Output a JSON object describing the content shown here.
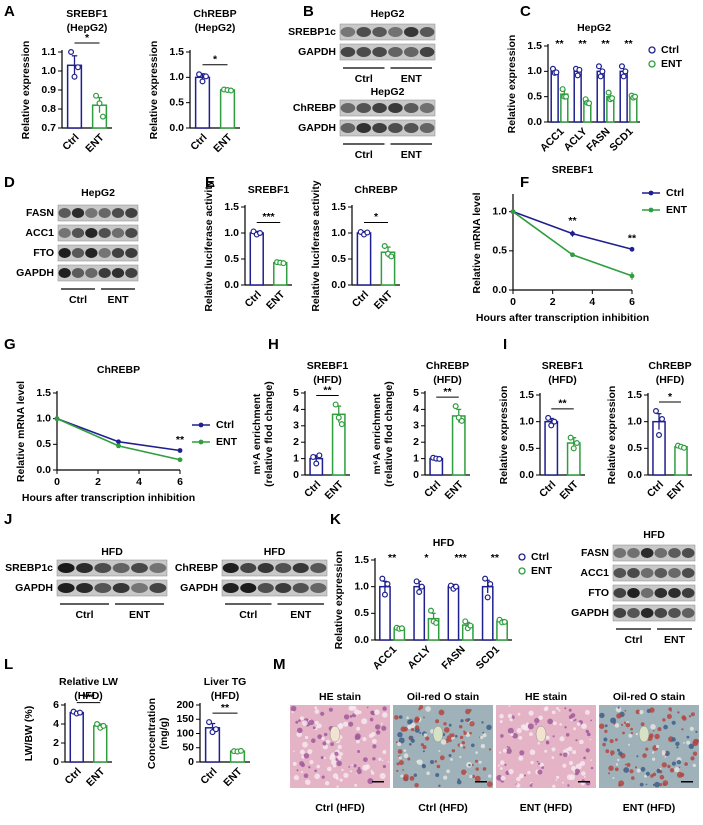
{
  "panel_letters": [
    "A",
    "B",
    "C",
    "D",
    "E",
    "F",
    "G",
    "H",
    "I",
    "J",
    "K",
    "L",
    "M"
  ],
  "chart_data": [
    {
      "type": "bar",
      "title": "SREBF1",
      "subtitle": "(HepG2)",
      "y_label": "Relative expression",
      "categories": [
        "Ctrl",
        "ENT"
      ],
      "colors": [
        "#1f1f8f",
        "#2e9e3e"
      ],
      "values": [
        1.03,
        0.82
      ],
      "errors": [
        0.05,
        0.04
      ],
      "points": [
        [
          1.1,
          0.97,
          1.02
        ],
        [
          0.87,
          0.83,
          0.76
        ]
      ],
      "ylim": [
        0.7,
        1.1
      ],
      "yticks": [
        0.7,
        0.8,
        0.9,
        {
          "value": 1,
          "label": "1.0"
        },
        1.1
      ],
      "significance": "*"
    },
    {
      "type": "bar",
      "title": "ChREBP",
      "subtitle": "(HepG2)",
      "y_label": "Relative expression",
      "categories": [
        "Ctrl",
        "ENT"
      ],
      "colors": [
        "#1f1f8f",
        "#2e9e3e"
      ],
      "values": [
        1.0,
        0.75
      ],
      "errors": [
        0.07,
        0.01
      ],
      "points": [
        [
          1.06,
          0.92,
          1.02
        ],
        [
          0.76,
          0.75,
          0.74
        ]
      ],
      "ylim": [
        0,
        1.5
      ],
      "yticks": [
        {
          "value": 0,
          "label": "0.0"
        },
        0.5,
        {
          "value": 1,
          "label": "1.0"
        },
        1.5
      ],
      "significance": "*"
    },
    {
      "type": "bar",
      "title": "HepG2",
      "y_label": "Relative expression",
      "categories": [
        "ACC1",
        "ACLY",
        "FASN",
        "SCD1"
      ],
      "series": [
        {
          "name": "Ctrl",
          "color": "#1f1f8f",
          "values": [
            1.0,
            1.0,
            1.0,
            1.0
          ],
          "errors": [
            0.05,
            0.07,
            0.1,
            0.1
          ],
          "points": [
            [
              1.05,
              0.97,
              0.98
            ],
            [
              1.05,
              0.92,
              1.03
            ],
            [
              1.1,
              0.9,
              1.0
            ],
            [
              1.1,
              0.9,
              1.0
            ]
          ]
        },
        {
          "name": "ENT",
          "color": "#2e9e3e",
          "values": [
            0.55,
            0.4,
            0.5,
            0.5
          ],
          "errors": [
            0.08,
            0.04,
            0.06,
            0.04
          ],
          "points": [
            [
              0.65,
              0.5,
              0.5
            ],
            [
              0.45,
              0.38,
              0.37
            ],
            [
              0.58,
              0.45,
              0.47
            ],
            [
              0.52,
              0.48,
              0.5
            ]
          ]
        }
      ],
      "ylim": [
        0,
        1.5
      ],
      "yticks": [
        {
          "value": 0,
          "label": "0.0"
        },
        0.5,
        {
          "value": 1,
          "label": "1.0"
        },
        1.5
      ],
      "significance": [
        "**",
        "**",
        "**",
        "**"
      ],
      "legend": "upper right"
    },
    {
      "type": "bar",
      "title": "SREBF1",
      "y_label": "Relative luciferase activity",
      "categories": [
        "Ctrl",
        "ENT"
      ],
      "colors": [
        "#1f1f8f",
        "#2e9e3e"
      ],
      "values": [
        1.0,
        0.43
      ],
      "errors": [
        0.03,
        0.01
      ],
      "points": [
        [
          1.03,
          0.97,
          1.0
        ],
        [
          0.44,
          0.43,
          0.42
        ]
      ],
      "ylim": [
        0,
        1.5
      ],
      "yticks": [
        {
          "value": 0,
          "label": "0.0"
        },
        0.5,
        {
          "value": 1,
          "label": "1.0"
        },
        1.5
      ],
      "significance": "***"
    },
    {
      "type": "bar",
      "title": "ChREBP",
      "y_label": "Relative luciferase activity",
      "categories": [
        "Ctrl",
        "ENT"
      ],
      "colors": [
        "#1f1f8f",
        "#2e9e3e"
      ],
      "values": [
        1.0,
        0.63
      ],
      "errors": [
        0.03,
        0.1
      ],
      "points": [
        [
          1.02,
          0.97,
          1.01
        ],
        [
          0.75,
          0.6,
          0.55
        ]
      ],
      "ylim": [
        0,
        1.5
      ],
      "yticks": [
        {
          "value": 0,
          "label": "0.0"
        },
        0.5,
        {
          "value": 1,
          "label": "1.0"
        },
        1.5
      ],
      "significance": "*"
    },
    {
      "type": "line",
      "title": "SREBF1",
      "x_label": "Hours after transcription inhibition",
      "y_label": "Relative mRNA level",
      "x": [
        0,
        3,
        6
      ],
      "series": [
        {
          "name": "Ctrl",
          "color": "#1f1f8f",
          "values": [
            1.0,
            0.72,
            0.52
          ],
          "errors": [
            0.02,
            0.04,
            0.02
          ]
        },
        {
          "name": "ENT",
          "color": "#2e9e3e",
          "values": [
            1.0,
            0.45,
            0.18
          ],
          "errors": [
            0.02,
            0.02,
            0.05
          ]
        }
      ],
      "xlim": [
        0,
        6
      ],
      "xticks": [
        0,
        2,
        4,
        6
      ],
      "ylim": [
        0,
        1.2
      ],
      "yticks": [
        {
          "value": 0,
          "label": "0.0"
        },
        0.5,
        {
          "value": 1,
          "label": "1.0"
        }
      ],
      "annotations": [
        {
          "x": 3,
          "text": "**"
        },
        {
          "x": 6,
          "text": "**"
        }
      ],
      "legend": "right"
    },
    {
      "type": "line",
      "title": "ChREBP",
      "x_label": "Hours after transcription inhibition",
      "y_label": "Relative mRNA level",
      "x": [
        0,
        3,
        6
      ],
      "series": [
        {
          "name": "Ctrl",
          "color": "#1f1f8f",
          "values": [
            1.0,
            0.55,
            0.38
          ],
          "errors": [
            0.02,
            0.02,
            0.02
          ]
        },
        {
          "name": "ENT",
          "color": "#2e9e3e",
          "values": [
            1.0,
            0.47,
            0.2
          ],
          "errors": [
            0.02,
            0.02,
            0.02
          ]
        }
      ],
      "xlim": [
        0,
        6
      ],
      "xticks": [
        0,
        2,
        4,
        6
      ],
      "ylim": [
        0,
        1.5
      ],
      "yticks": [
        {
          "value": 0,
          "label": "0.0"
        },
        0.5,
        {
          "value": 1,
          "label": "1.0"
        },
        1.5
      ],
      "annotations": [
        {
          "x": 6,
          "text": "**"
        }
      ],
      "legend": "right"
    },
    {
      "type": "bar",
      "title": "SREBF1",
      "subtitle": "(HFD)",
      "y_label": [
        "m⁶A enrichment",
        "(relative flod change)"
      ],
      "categories": [
        "Ctrl",
        "ENT"
      ],
      "colors": [
        "#1f1f8f",
        "#2e9e3e"
      ],
      "values": [
        1.0,
        3.7
      ],
      "errors": [
        0.2,
        0.5
      ],
      "points": [
        [
          1.1,
          0.7,
          1.2
        ],
        [
          4.3,
          3.5,
          3.1
        ]
      ],
      "ylim": [
        0,
        5
      ],
      "yticks": [
        0,
        1,
        2,
        3,
        4,
        5
      ],
      "significance": "**"
    },
    {
      "type": "bar",
      "title": "ChREBP",
      "subtitle": "(HFD)",
      "y_label": [
        "m⁶A enrichment",
        "(relative flod change)"
      ],
      "categories": [
        "Ctrl",
        "ENT"
      ],
      "colors": [
        "#1f1f8f",
        "#2e9e3e"
      ],
      "values": [
        1.0,
        3.6
      ],
      "errors": [
        0.05,
        0.4
      ],
      "points": [
        [
          1.05,
          1.0,
          0.98
        ],
        [
          4.2,
          3.5,
          3.3
        ]
      ],
      "ylim": [
        0,
        5
      ],
      "yticks": [
        0,
        1,
        2,
        3,
        4,
        5
      ],
      "significance": "**"
    },
    {
      "type": "bar",
      "title": "SREBF1",
      "subtitle": "(HFD)",
      "y_label": "Relative expression",
      "categories": [
        "Ctrl",
        "ENT"
      ],
      "colors": [
        "#1f1f8f",
        "#2e9e3e"
      ],
      "values": [
        1.0,
        0.6
      ],
      "errors": [
        0.06,
        0.1
      ],
      "points": [
        [
          1.07,
          0.93,
          1.0
        ],
        [
          0.7,
          0.5,
          0.6
        ]
      ],
      "ylim": [
        0,
        1.5
      ],
      "yticks": [
        {
          "value": 0,
          "label": "0.0"
        },
        0.5,
        {
          "value": 1,
          "label": "1.0"
        },
        1.5
      ],
      "significance": "**"
    },
    {
      "type": "bar",
      "title": "ChREBP",
      "subtitle": "(HFD)",
      "y_label": "Relative expression",
      "categories": [
        "Ctrl",
        "ENT"
      ],
      "colors": [
        "#1f1f8f",
        "#2e9e3e"
      ],
      "values": [
        1.0,
        0.53
      ],
      "errors": [
        0.15,
        0.02
      ],
      "points": [
        [
          1.2,
          0.75,
          1.05
        ],
        [
          0.55,
          0.53,
          0.51
        ]
      ],
      "ylim": [
        0,
        1.5
      ],
      "yticks": [
        {
          "value": 0,
          "label": "0.0"
        },
        0.5,
        {
          "value": 1,
          "label": "1.0"
        },
        1.5
      ],
      "significance": "*"
    },
    {
      "type": "bar",
      "title": "HFD",
      "y_label": "Relative expression",
      "categories": [
        "ACC1",
        "ACLY",
        "FASN",
        "SCD1"
      ],
      "series": [
        {
          "name": "Ctrl",
          "color": "#1f1f8f",
          "values": [
            1.0,
            1.0,
            1.0,
            1.0
          ],
          "errors": [
            0.1,
            0.1,
            0.04,
            0.12
          ],
          "points": [
            [
              1.15,
              0.85,
              1.05
            ],
            [
              1.1,
              0.9,
              1.0
            ],
            [
              1.02,
              0.96,
              1.0
            ],
            [
              1.15,
              0.8,
              1.05
            ]
          ]
        },
        {
          "name": "ENT",
          "color": "#2e9e3e",
          "values": [
            0.22,
            0.4,
            0.28,
            0.35
          ],
          "errors": [
            0.02,
            0.1,
            0.05,
            0.03
          ],
          "points": [
            [
              0.23,
              0.21,
              0.22
            ],
            [
              0.55,
              0.35,
              0.32
            ],
            [
              0.35,
              0.22,
              0.27
            ],
            [
              0.38,
              0.33,
              0.34
            ]
          ]
        }
      ],
      "ylim": [
        0,
        1.5
      ],
      "yticks": [
        {
          "value": 0,
          "label": "0.0"
        },
        0.5,
        {
          "value": 1,
          "label": "1.0"
        },
        1.5
      ],
      "significance": [
        "**",
        "*",
        "***",
        "**"
      ],
      "legend": "upper right"
    },
    {
      "type": "bar",
      "title": "Relative LW",
      "subtitle": "(HFD)",
      "y_label": "LW/BW (%)",
      "categories": [
        "Ctrl",
        "ENT"
      ],
      "colors": [
        "#1f1f8f",
        "#2e9e3e"
      ],
      "values": [
        5.2,
        3.8
      ],
      "errors": [
        0.1,
        0.2
      ],
      "points": [
        [
          5.3,
          5.1,
          5.2
        ],
        [
          4.0,
          3.6,
          3.8
        ]
      ],
      "ylim": [
        0,
        6
      ],
      "yticks": [
        0,
        2,
        4,
        6
      ],
      "significance": "***"
    },
    {
      "type": "bar",
      "title": "Liver TG",
      "subtitle": "(HFD)",
      "y_label": [
        "Concentration",
        "(mg/g)"
      ],
      "categories": [
        "Ctrl",
        "ENT"
      ],
      "colors": [
        "#1f1f8f",
        "#2e9e3e"
      ],
      "values": [
        120,
        38
      ],
      "errors": [
        15,
        1
      ],
      "points": [
        [
          140,
          105,
          115
        ],
        [
          38,
          37,
          39
        ]
      ],
      "ylim": [
        0,
        200
      ],
      "yticks": [
        0,
        50,
        100,
        150,
        200
      ],
      "significance": "**"
    }
  ],
  "blots": [
    {
      "title": "HepG2",
      "rows": [
        "SREBP1c",
        "GAPDH"
      ],
      "groups": [
        "Ctrl",
        "ENT"
      ]
    },
    {
      "title": "HepG2",
      "rows": [
        "ChREBP",
        "GAPDH"
      ],
      "groups": [
        "Ctrl",
        "ENT"
      ]
    },
    {
      "title": "HepG2",
      "rows": [
        "FASN",
        "ACC1",
        "FTO",
        "GAPDH"
      ],
      "groups": [
        "Ctrl",
        "ENT"
      ]
    },
    {
      "title": "HFD",
      "rows": [
        "SREBP1c",
        "GAPDH"
      ],
      "groups": [
        "Ctrl",
        "ENT"
      ]
    },
    {
      "title": "HFD",
      "rows": [
        "ChREBP",
        "GAPDH"
      ],
      "groups": [
        "Ctrl",
        "ENT"
      ]
    },
    {
      "title": "HFD",
      "rows": [
        "FASN",
        "ACC1",
        "FTO",
        "GAPDH"
      ],
      "groups": [
        "Ctrl",
        "ENT"
      ]
    }
  ],
  "micrographs": {
    "stains": [
      "HE stain",
      "Oil-red O stain",
      "HE stain",
      "Oil-red O stain"
    ],
    "captions": [
      "Ctrl (HFD)",
      "Ctrl (HFD)",
      "ENT (HFD)",
      "ENT (HFD)"
    ]
  }
}
